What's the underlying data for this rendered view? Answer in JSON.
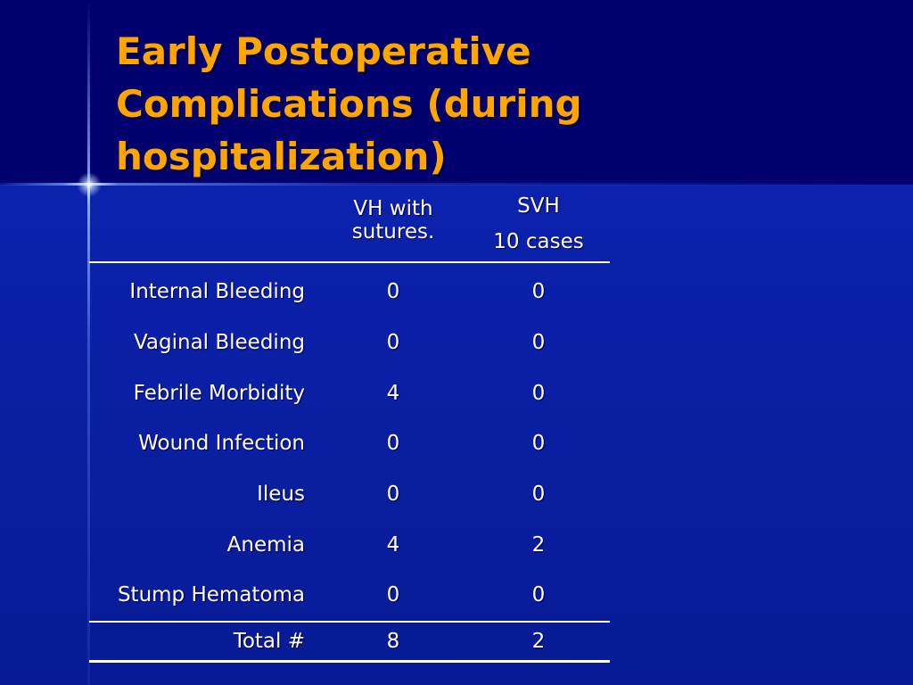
{
  "slide": {
    "title_lines": [
      "Early Postoperative",
      "Complications (during",
      "hospitalization)"
    ]
  },
  "table": {
    "headers": {
      "col1": "",
      "col2_lines": [
        "VH with",
        "sutures."
      ],
      "col3_lines": [
        "SVH",
        "10 cases"
      ]
    },
    "rows": [
      {
        "label": "Internal Bleeding",
        "vh": "0",
        "svh": "0"
      },
      {
        "label": "Vaginal Bleeding",
        "vh": "0",
        "svh": "0"
      },
      {
        "label": "Febrile Morbidity",
        "vh": "4",
        "svh": "0"
      },
      {
        "label": "Wound Infection",
        "vh": "0",
        "svh": "0"
      },
      {
        "label": "Ileus",
        "vh": "0",
        "svh": "0"
      },
      {
        "label": "Anemia",
        "vh": "4",
        "svh": "2"
      },
      {
        "label": "Stump Hematoma",
        "vh": "0",
        "svh": "0"
      }
    ],
    "total": {
      "label": "Total #",
      "vh": "8",
      "svh": "2"
    }
  },
  "colors": {
    "title": "#ffa500",
    "background_top": "#00006e",
    "background_main": "#0b1fa6",
    "text": "#ffffff"
  }
}
